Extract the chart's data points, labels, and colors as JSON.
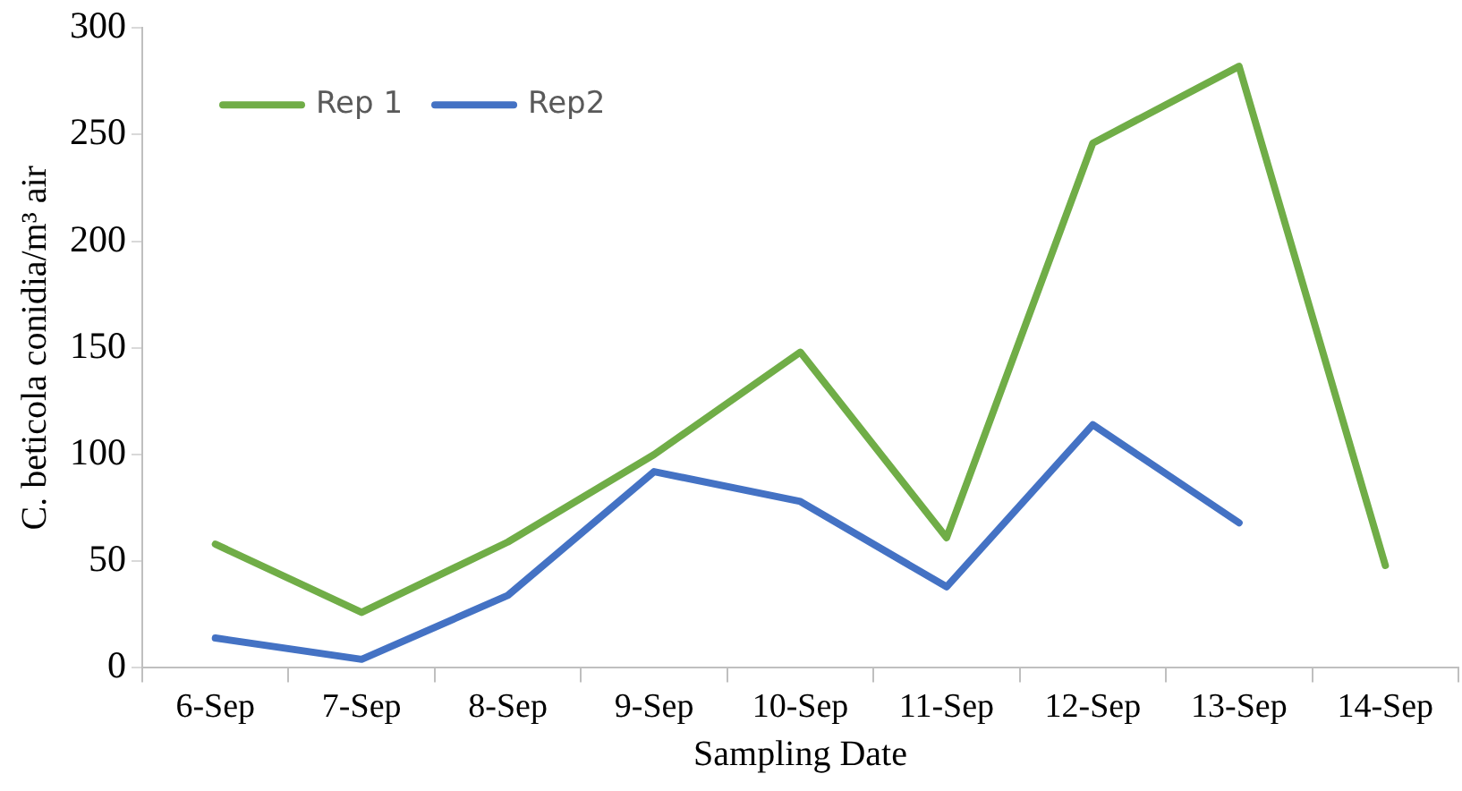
{
  "chart_data": {
    "type": "line",
    "xlabel": "Sampling Date",
    "ylabel": "C. beticola conidia/m³ air",
    "categories": [
      "6-Sep",
      "7-Sep",
      "8-Sep",
      "9-Sep",
      "10-Sep",
      "11-Sep",
      "12-Sep",
      "13-Sep",
      "14-Sep"
    ],
    "series": [
      {
        "name": "Rep 1",
        "color": "#70ad47",
        "values": [
          58,
          26,
          59,
          100,
          148,
          61,
          246,
          282,
          48
        ]
      },
      {
        "name": "Rep2",
        "color": "#4472c4",
        "values": [
          14,
          4,
          34,
          92,
          78,
          38,
          114,
          68,
          null
        ]
      }
    ],
    "ylim": [
      0,
      300
    ],
    "yticks": [
      0,
      50,
      100,
      150,
      200,
      250,
      300
    ],
    "grid": false,
    "legend": "top left",
    "marker": "none",
    "line_style": "solid"
  }
}
